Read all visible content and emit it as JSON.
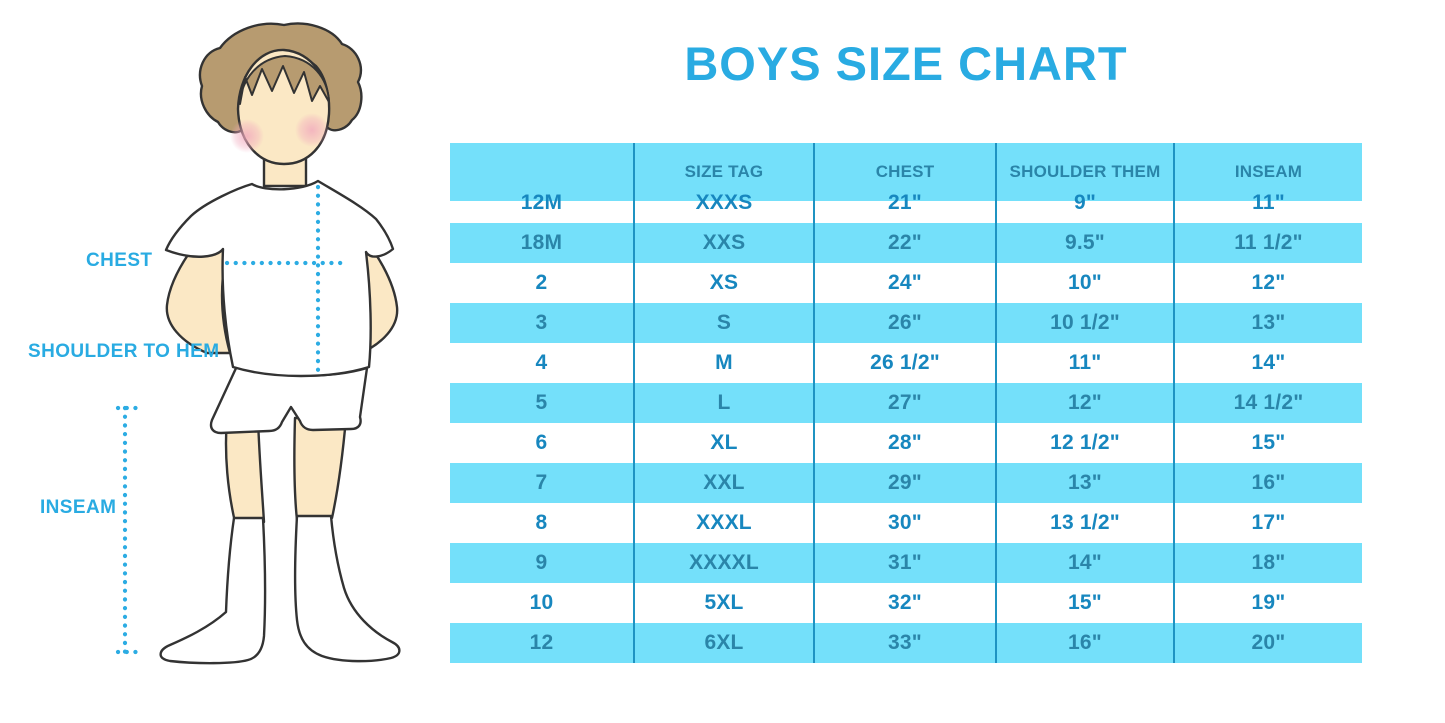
{
  "title": "BOYS SIZE CHART",
  "diagram": {
    "labels": {
      "chest": "CHEST",
      "shoulder_to_hem": "SHOULDER TO HEM",
      "inseam": "INSEAM"
    }
  },
  "table": {
    "headers": [
      "",
      "SIZE TAG",
      "CHEST",
      "SHOULDER THEM",
      "INSEAM"
    ],
    "rows": [
      [
        "12M",
        "XXXS",
        "21\"",
        "9\"",
        "11\""
      ],
      [
        "18M",
        "XXS",
        "22\"",
        "9.5\"",
        "11 1/2\""
      ],
      [
        "2",
        "XS",
        "24\"",
        "10\"",
        "12\""
      ],
      [
        "3",
        "S",
        "26\"",
        "10 1/2\"",
        "13\""
      ],
      [
        "4",
        "M",
        "26 1/2\"",
        "11\"",
        "14\""
      ],
      [
        "5",
        "L",
        "27\"",
        "12\"",
        "14 1/2\""
      ],
      [
        "6",
        "XL",
        "28\"",
        "12 1/2\"",
        "15\""
      ],
      [
        "7",
        "XXL",
        "29\"",
        "13\"",
        "16\""
      ],
      [
        "8",
        "XXXL",
        "30\"",
        "13 1/2\"",
        "17\""
      ],
      [
        "9",
        "XXXXL",
        "31\"",
        "14\"",
        "18\""
      ],
      [
        "10",
        "5XL",
        "32\"",
        "15\"",
        "19\""
      ],
      [
        "12",
        "6XL",
        "33\"",
        "16\"",
        "20\""
      ]
    ]
  },
  "colors": {
    "accent_blue": "#29ABE2",
    "table_fill_blue": "#74E0FA",
    "grid_line_blue": "#1F93C2",
    "cell_text_blue": "#1787BF",
    "header_text_blue": "#2C87AB",
    "dotted_line_blue": "#2CACE3",
    "skin": "#FBE8C5",
    "hair": "#B79B70"
  },
  "chart_data": {
    "type": "table",
    "title": "BOYS SIZE CHART",
    "columns": [
      "",
      "SIZE TAG",
      "CHEST",
      "SHOULDER THEM",
      "INSEAM"
    ],
    "rows": [
      [
        "12M",
        "XXXS",
        "21\"",
        "9\"",
        "11\""
      ],
      [
        "18M",
        "XXS",
        "22\"",
        "9.5\"",
        "11 1/2\""
      ],
      [
        "2",
        "XS",
        "24\"",
        "10\"",
        "12\""
      ],
      [
        "3",
        "S",
        "26\"",
        "10 1/2\"",
        "13\""
      ],
      [
        "4",
        "M",
        "26 1/2\"",
        "11\"",
        "14\""
      ],
      [
        "5",
        "L",
        "27\"",
        "12\"",
        "14 1/2\""
      ],
      [
        "6",
        "XL",
        "28\"",
        "12 1/2\"",
        "15\""
      ],
      [
        "7",
        "XXL",
        "29\"",
        "13\"",
        "16\""
      ],
      [
        "8",
        "XXXL",
        "30\"",
        "13 1/2\"",
        "17\""
      ],
      [
        "9",
        "XXXXL",
        "31\"",
        "14\"",
        "18\""
      ],
      [
        "10",
        "5XL",
        "32\"",
        "15\"",
        "19\""
      ],
      [
        "12",
        "6XL",
        "33\"",
        "16\"",
        "20\""
      ]
    ],
    "notes": "Alternating white and light-blue rows; measurement diagram of boy at left with CHEST, SHOULDER TO HEM and INSEAM indicators"
  }
}
